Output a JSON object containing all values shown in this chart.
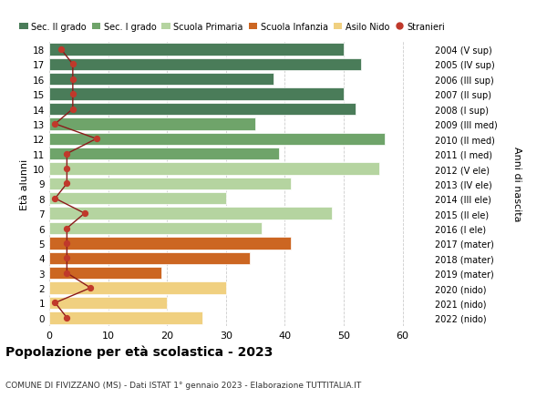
{
  "ages": [
    18,
    17,
    16,
    15,
    14,
    13,
    12,
    11,
    10,
    9,
    8,
    7,
    6,
    5,
    4,
    3,
    2,
    1,
    0
  ],
  "anni_nascita": [
    "2004 (V sup)",
    "2005 (IV sup)",
    "2006 (III sup)",
    "2007 (II sup)",
    "2008 (I sup)",
    "2009 (III med)",
    "2010 (II med)",
    "2011 (I med)",
    "2012 (V ele)",
    "2013 (IV ele)",
    "2014 (III ele)",
    "2015 (II ele)",
    "2016 (I ele)",
    "2017 (mater)",
    "2018 (mater)",
    "2019 (mater)",
    "2020 (nido)",
    "2021 (nido)",
    "2022 (nido)"
  ],
  "bar_values": [
    50,
    53,
    38,
    50,
    52,
    35,
    57,
    39,
    56,
    41,
    30,
    48,
    36,
    41,
    34,
    19,
    30,
    20,
    26
  ],
  "bar_colors": [
    "#4a7c59",
    "#4a7c59",
    "#4a7c59",
    "#4a7c59",
    "#4a7c59",
    "#6fa46a",
    "#6fa46a",
    "#6fa46a",
    "#b5d4a0",
    "#b5d4a0",
    "#b5d4a0",
    "#b5d4a0",
    "#b5d4a0",
    "#cc6622",
    "#cc6622",
    "#cc6622",
    "#f0d080",
    "#f0d080",
    "#f0d080"
  ],
  "stranieri_values": [
    2,
    4,
    4,
    4,
    4,
    1,
    8,
    3,
    3,
    3,
    1,
    6,
    3,
    3,
    3,
    3,
    7,
    1,
    3
  ],
  "legend_labels": [
    "Sec. II grado",
    "Sec. I grado",
    "Scuola Primaria",
    "Scuola Infanzia",
    "Asilo Nido",
    "Stranieri"
  ],
  "legend_colors": [
    "#4a7c59",
    "#6fa46a",
    "#b5d4a0",
    "#cc6622",
    "#f0d080",
    "#c0392b"
  ],
  "ylabel_text": "Età alunni",
  "right_label": "Anni di nascita",
  "title": "Popolazione per età scolastica - 2023",
  "subtitle": "COMUNE DI FIVIZZANO (MS) - Dati ISTAT 1° gennaio 2023 - Elaborazione TUTTITALIA.IT",
  "xlim": [
    0,
    65
  ],
  "xticks": [
    0,
    10,
    20,
    30,
    40,
    50,
    60
  ],
  "stranieri_color": "#c0392b",
  "line_color": "#8b1a1a",
  "bg_color": "#ffffff",
  "grid_color": "#cccccc"
}
